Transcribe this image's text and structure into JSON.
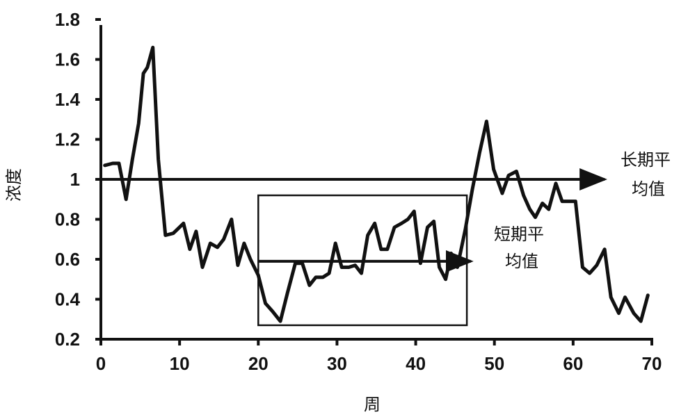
{
  "chart_data": {
    "type": "line",
    "xlabel": "周",
    "ylabel": "浓度",
    "xlim": [
      0,
      70
    ],
    "ylim": [
      0.2,
      1.8
    ],
    "x_ticks": [
      "0",
      "10",
      "20",
      "30",
      "40",
      "50",
      "60",
      "70"
    ],
    "y_ticks": [
      "0.2",
      "0.4",
      "0.6",
      "0.8",
      "1",
      "1.2",
      "1.4",
      "1.6",
      "1.8"
    ],
    "grid": false,
    "series": [
      {
        "points": [
          [
            0.5,
            1.07
          ],
          [
            1.5,
            1.08
          ],
          [
            2.3,
            1.08
          ],
          [
            3.2,
            0.9
          ],
          [
            4.0,
            1.1
          ],
          [
            4.8,
            1.28
          ],
          [
            5.4,
            1.53
          ],
          [
            5.9,
            1.56
          ],
          [
            6.6,
            1.66
          ],
          [
            7.3,
            1.1
          ],
          [
            8.2,
            0.72
          ],
          [
            9.2,
            0.73
          ],
          [
            10.5,
            0.78
          ],
          [
            11.3,
            0.65
          ],
          [
            12.1,
            0.74
          ],
          [
            12.9,
            0.56
          ],
          [
            13.9,
            0.68
          ],
          [
            14.8,
            0.66
          ],
          [
            15.6,
            0.7
          ],
          [
            16.6,
            0.8
          ],
          [
            17.4,
            0.57
          ],
          [
            18.2,
            0.68
          ],
          [
            19.0,
            0.6
          ],
          [
            20.0,
            0.52
          ],
          [
            20.9,
            0.38
          ],
          [
            21.8,
            0.34
          ],
          [
            22.8,
            0.29
          ],
          [
            23.7,
            0.43
          ],
          [
            24.7,
            0.58
          ],
          [
            25.6,
            0.58
          ],
          [
            26.5,
            0.47
          ],
          [
            27.3,
            0.51
          ],
          [
            28.2,
            0.51
          ],
          [
            29.0,
            0.53
          ],
          [
            29.8,
            0.68
          ],
          [
            30.6,
            0.56
          ],
          [
            31.5,
            0.56
          ],
          [
            32.3,
            0.57
          ],
          [
            33.1,
            0.53
          ],
          [
            33.9,
            0.72
          ],
          [
            34.8,
            0.78
          ],
          [
            35.6,
            0.65
          ],
          [
            36.4,
            0.65
          ],
          [
            37.3,
            0.76
          ],
          [
            38.2,
            0.78
          ],
          [
            39.0,
            0.8
          ],
          [
            39.8,
            0.84
          ],
          [
            40.6,
            0.58
          ],
          [
            41.5,
            0.76
          ],
          [
            42.3,
            0.79
          ],
          [
            43.0,
            0.56
          ],
          [
            43.8,
            0.5
          ],
          [
            44.5,
            0.63
          ],
          [
            45.3,
            0.56
          ],
          [
            46.3,
            0.75
          ],
          [
            47.2,
            0.95
          ],
          [
            48.1,
            1.13
          ],
          [
            49.0,
            1.29
          ],
          [
            49.9,
            1.05
          ],
          [
            51.0,
            0.93
          ],
          [
            51.8,
            1.02
          ],
          [
            52.8,
            1.04
          ],
          [
            53.7,
            0.92
          ],
          [
            54.5,
            0.85
          ],
          [
            55.2,
            0.81
          ],
          [
            56.1,
            0.88
          ],
          [
            56.9,
            0.85
          ],
          [
            57.8,
            0.98
          ],
          [
            58.6,
            0.89
          ],
          [
            59.5,
            0.89
          ],
          [
            60.3,
            0.89
          ],
          [
            61.2,
            0.56
          ],
          [
            62.1,
            0.53
          ],
          [
            63.0,
            0.57
          ],
          [
            64.0,
            0.65
          ],
          [
            64.8,
            0.41
          ],
          [
            65.8,
            0.33
          ],
          [
            66.6,
            0.41
          ],
          [
            67.7,
            0.33
          ],
          [
            68.6,
            0.29
          ],
          [
            69.5,
            0.42
          ]
        ]
      }
    ],
    "annotations": {
      "long_term_average": {
        "label_lines": [
          "长期平",
          "均值"
        ],
        "value": 1.0,
        "x_start": 0,
        "x_end": 64
      },
      "short_term_average": {
        "label_lines": [
          "短期平",
          "均值"
        ],
        "value": 0.59,
        "x_start": 20,
        "x_end": 47
      },
      "box": {
        "x_start": 20,
        "x_end": 46.5,
        "y_start": 0.27,
        "y_end": 0.92
      }
    }
  }
}
